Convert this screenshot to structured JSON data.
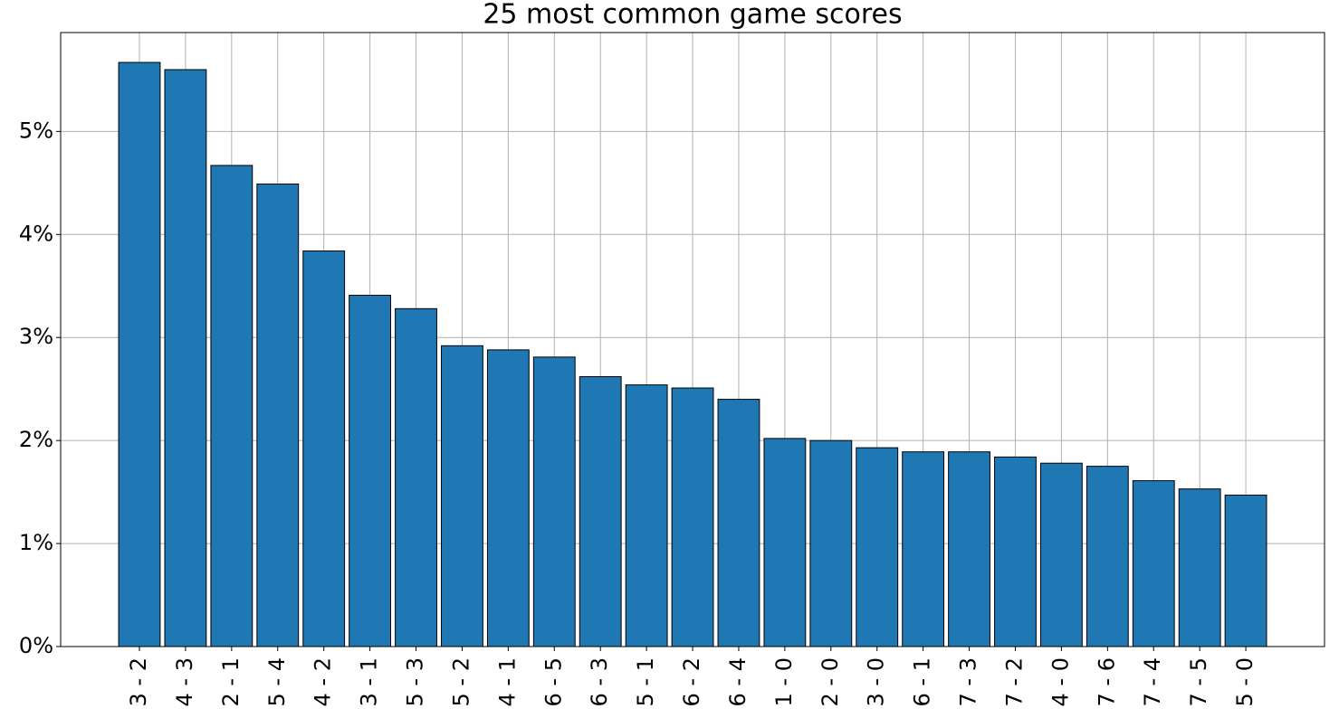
{
  "chart_data": {
    "type": "bar",
    "title": "25 most common game scores",
    "categories": [
      "3 - 2",
      "4 - 3",
      "2 - 1",
      "5 - 4",
      "4 - 2",
      "3 - 1",
      "5 - 3",
      "5 - 2",
      "4 - 1",
      "6 - 5",
      "6 - 3",
      "5 - 1",
      "6 - 2",
      "6 - 4",
      "1 - 0",
      "2 - 0",
      "3 - 0",
      "6 - 1",
      "7 - 3",
      "7 - 2",
      "4 - 0",
      "7 - 6",
      "7 - 4",
      "7 - 5",
      "5 - 0"
    ],
    "values": [
      5.67,
      5.6,
      4.67,
      4.49,
      3.84,
      3.41,
      3.28,
      2.92,
      2.88,
      2.81,
      2.62,
      2.54,
      2.51,
      2.4,
      2.02,
      2.0,
      1.93,
      1.89,
      1.89,
      1.84,
      1.78,
      1.75,
      1.61,
      1.53,
      1.47
    ],
    "color": "#1f77b4",
    "ylim": [
      0,
      5.96
    ],
    "yticks": [
      {
        "value": 0,
        "label": "0%"
      },
      {
        "value": 1,
        "label": "1%"
      },
      {
        "value": 2,
        "label": "2%"
      },
      {
        "value": 3,
        "label": "3%"
      },
      {
        "value": 4,
        "label": "4%"
      },
      {
        "value": 5,
        "label": "5%"
      }
    ],
    "grid": true
  }
}
